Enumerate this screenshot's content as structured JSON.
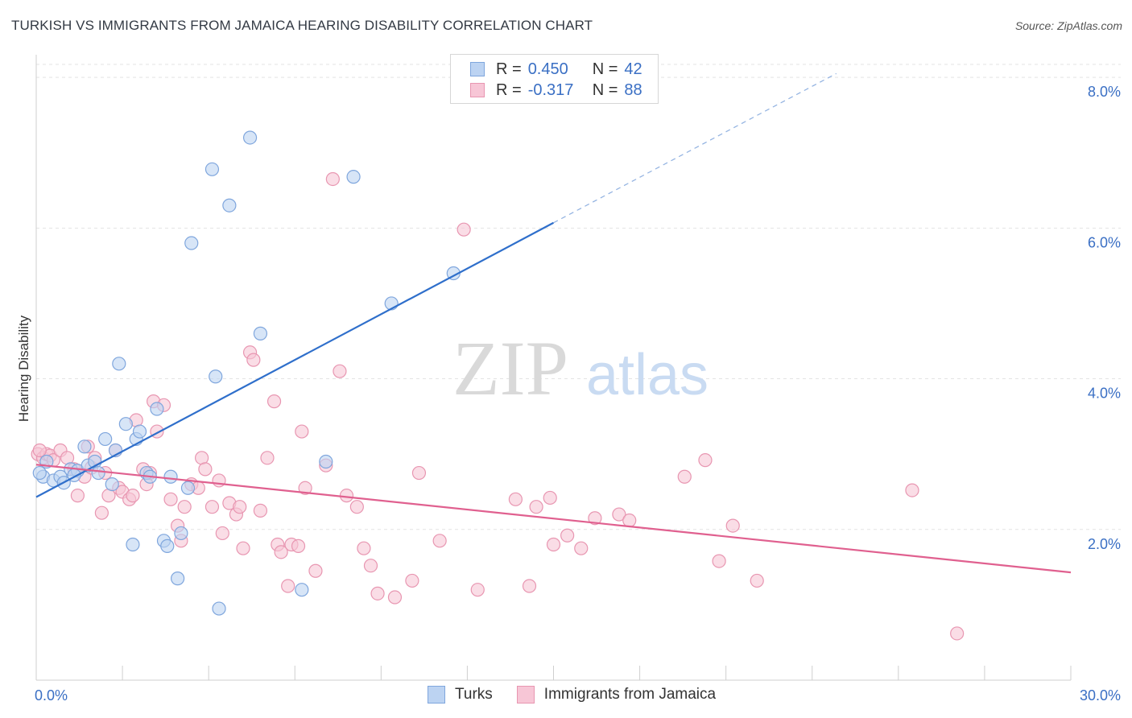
{
  "title": "TURKISH VS IMMIGRANTS FROM JAMAICA HEARING DISABILITY CORRELATION CHART",
  "source": "Source: ZipAtlas.com",
  "watermark": {
    "zip": "ZIP",
    "atlas": "atlas"
  },
  "legend": {
    "r_label": "R =",
    "n_label": "N =",
    "rows": [
      {
        "r": "0.450",
        "n": "42"
      },
      {
        "r": "-0.317",
        "n": "88"
      }
    ]
  },
  "colors": {
    "turks_fill": "#bcd3f2",
    "turks_stroke": "#7fa6dd",
    "turks_line": "#2f6fcb",
    "jam_fill": "#f7c6d6",
    "jam_stroke": "#e896b1",
    "jam_line": "#e0608f",
    "axis_label": "#3a6fc4",
    "grid": "#e3e3e3"
  },
  "chart_data": {
    "type": "scatter",
    "title": "TURKISH VS IMMIGRANTS FROM JAMAICA HEARING DISABILITY CORRELATION CHART",
    "ylabel": "Hearing Disability",
    "xlim": [
      0,
      30
    ],
    "ylim": [
      0,
      8.3
    ],
    "x_ticks": [
      "0.0%",
      "30.0%"
    ],
    "y_ticks": [
      {
        "v": 2,
        "label": "2.0%"
      },
      {
        "v": 4,
        "label": "4.0%"
      },
      {
        "v": 6,
        "label": "6.0%"
      },
      {
        "v": 8,
        "label": "8.0%"
      }
    ],
    "legend_position": "top-center",
    "grid": true,
    "series": [
      {
        "name": "Turks",
        "r": 0.45,
        "n": 42,
        "trend": {
          "x0": 0,
          "y0": 2.43,
          "x1": 15,
          "y1": 6.07,
          "dash_x1": 23.2,
          "dash_y1": 8.05
        },
        "points": [
          [
            0.2,
            2.7
          ],
          [
            0.5,
            2.65
          ],
          [
            0.7,
            2.7
          ],
          [
            0.8,
            2.62
          ],
          [
            1.0,
            2.8
          ],
          [
            1.2,
            2.78
          ],
          [
            1.4,
            3.1
          ],
          [
            1.5,
            2.85
          ],
          [
            1.7,
            2.9
          ],
          [
            1.8,
            2.75
          ],
          [
            2.0,
            3.2
          ],
          [
            2.2,
            2.6
          ],
          [
            2.3,
            3.05
          ],
          [
            2.4,
            4.2
          ],
          [
            2.6,
            3.4
          ],
          [
            2.8,
            1.8
          ],
          [
            2.9,
            3.2
          ],
          [
            3.0,
            3.3
          ],
          [
            3.2,
            2.75
          ],
          [
            3.3,
            2.7
          ],
          [
            3.5,
            3.6
          ],
          [
            3.7,
            1.85
          ],
          [
            3.8,
            1.78
          ],
          [
            3.9,
            2.7
          ],
          [
            4.1,
            1.35
          ],
          [
            4.2,
            1.95
          ],
          [
            4.4,
            2.55
          ],
          [
            4.5,
            5.8
          ],
          [
            5.1,
            6.78
          ],
          [
            5.2,
            4.03
          ],
          [
            5.3,
            0.95
          ],
          [
            5.6,
            6.3
          ],
          [
            6.2,
            7.2
          ],
          [
            6.5,
            4.6
          ],
          [
            7.7,
            1.2
          ],
          [
            8.4,
            2.9
          ],
          [
            9.2,
            6.68
          ],
          [
            10.3,
            5.0
          ],
          [
            12.1,
            5.4
          ],
          [
            0.1,
            2.75
          ],
          [
            0.3,
            2.9
          ],
          [
            1.1,
            2.72
          ]
        ]
      },
      {
        "name": "Immigrants from Jamaica",
        "r": -0.317,
        "n": 88,
        "trend": {
          "x0": 0,
          "y0": 2.86,
          "x1": 30,
          "y1": 1.43
        },
        "points": [
          [
            0.05,
            3.0
          ],
          [
            0.2,
            2.95
          ],
          [
            0.3,
            3.0
          ],
          [
            0.4,
            2.98
          ],
          [
            0.5,
            2.92
          ],
          [
            0.7,
            3.05
          ],
          [
            0.9,
            2.95
          ],
          [
            1.1,
            2.8
          ],
          [
            1.2,
            2.45
          ],
          [
            1.4,
            2.7
          ],
          [
            1.5,
            3.1
          ],
          [
            1.6,
            2.82
          ],
          [
            1.7,
            2.95
          ],
          [
            1.9,
            2.22
          ],
          [
            2.0,
            2.75
          ],
          [
            2.1,
            2.45
          ],
          [
            2.3,
            3.05
          ],
          [
            2.4,
            2.55
          ],
          [
            2.5,
            2.5
          ],
          [
            2.7,
            2.4
          ],
          [
            2.8,
            2.45
          ],
          [
            2.9,
            3.45
          ],
          [
            3.1,
            2.8
          ],
          [
            3.2,
            2.6
          ],
          [
            3.3,
            2.75
          ],
          [
            3.4,
            3.7
          ],
          [
            3.5,
            3.3
          ],
          [
            3.7,
            3.65
          ],
          [
            3.9,
            2.4
          ],
          [
            4.1,
            2.05
          ],
          [
            4.2,
            1.85
          ],
          [
            4.3,
            2.3
          ],
          [
            4.5,
            2.6
          ],
          [
            4.7,
            2.55
          ],
          [
            4.8,
            2.95
          ],
          [
            4.9,
            2.8
          ],
          [
            5.1,
            2.3
          ],
          [
            5.3,
            2.65
          ],
          [
            5.4,
            1.95
          ],
          [
            5.6,
            2.35
          ],
          [
            5.8,
            2.2
          ],
          [
            5.9,
            2.3
          ],
          [
            6.0,
            1.75
          ],
          [
            6.2,
            4.35
          ],
          [
            6.3,
            4.25
          ],
          [
            6.5,
            2.25
          ],
          [
            6.7,
            2.95
          ],
          [
            6.9,
            3.7
          ],
          [
            7.0,
            1.8
          ],
          [
            7.1,
            1.7
          ],
          [
            7.3,
            1.25
          ],
          [
            7.4,
            1.8
          ],
          [
            7.6,
            1.78
          ],
          [
            7.7,
            3.3
          ],
          [
            7.8,
            2.55
          ],
          [
            8.1,
            1.45
          ],
          [
            8.4,
            2.85
          ],
          [
            8.6,
            6.65
          ],
          [
            8.8,
            4.1
          ],
          [
            9.0,
            2.45
          ],
          [
            9.3,
            2.3
          ],
          [
            9.5,
            1.75
          ],
          [
            9.7,
            1.52
          ],
          [
            9.9,
            1.15
          ],
          [
            10.4,
            1.1
          ],
          [
            10.9,
            1.32
          ],
          [
            11.1,
            2.75
          ],
          [
            11.7,
            1.85
          ],
          [
            12.4,
            5.98
          ],
          [
            12.8,
            1.2
          ],
          [
            13.9,
            2.4
          ],
          [
            14.3,
            1.25
          ],
          [
            14.5,
            2.3
          ],
          [
            14.9,
            2.42
          ],
          [
            15.0,
            1.8
          ],
          [
            15.4,
            1.92
          ],
          [
            15.8,
            1.75
          ],
          [
            16.2,
            2.15
          ],
          [
            16.9,
            2.2
          ],
          [
            17.2,
            2.12
          ],
          [
            18.8,
            2.7
          ],
          [
            19.4,
            2.92
          ],
          [
            19.8,
            1.58
          ],
          [
            20.2,
            2.05
          ],
          [
            20.9,
            1.32
          ],
          [
            25.4,
            2.52
          ],
          [
            26.7,
            0.62
          ],
          [
            0.1,
            3.05
          ]
        ]
      }
    ]
  }
}
